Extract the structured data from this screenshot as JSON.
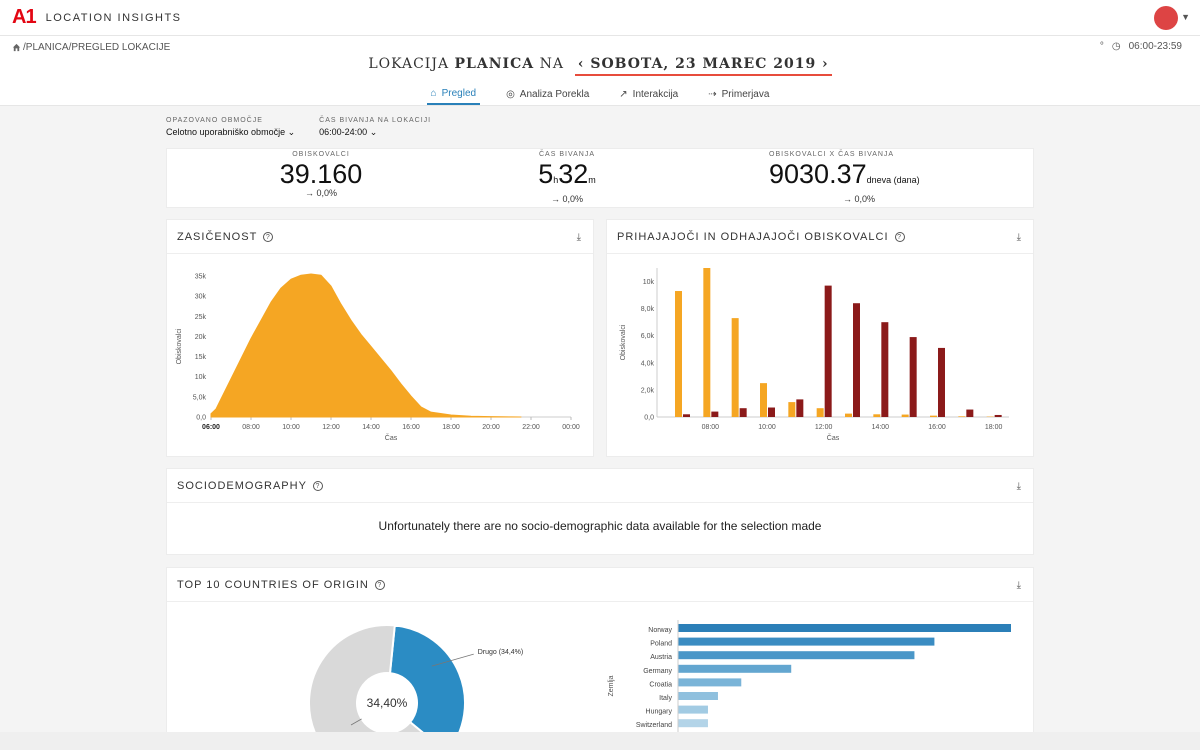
{
  "app": {
    "logo": "A1",
    "name": "LOCATION INSIGHTS"
  },
  "breadcrumb": "/PLANICA/PREGLED LOKACIJE",
  "time_range": "06:00-23:59",
  "title": {
    "prefix": "LOKACIJA",
    "location": "PLANICA",
    "mid": "NA",
    "date": "SOBOTA, 23 MAREC 2019"
  },
  "tabs": [
    {
      "label": "Pregled",
      "icon": "home-icon"
    },
    {
      "label": "Analiza Porekla",
      "icon": "globe-icon"
    },
    {
      "label": "Interakcija",
      "icon": "interaction-icon"
    },
    {
      "label": "Primerjava",
      "icon": "compare-icon"
    }
  ],
  "filters": {
    "area": {
      "label": "OPAZOVANO OBMOČJE",
      "value": "Celotno uporabniško območje"
    },
    "dwell": {
      "label": "ČAS BIVANJA NA LOKACIJI",
      "value": "06:00-24:00"
    }
  },
  "kpis": [
    {
      "label": "OBISKOVALCI",
      "value": "39.160",
      "unit": "",
      "delta": "→ 0,0%"
    },
    {
      "label": "ČAS BIVANJA",
      "value_h": "5",
      "unit_h": "h",
      "value_m": "32",
      "unit_m": "m",
      "delta": "→ 0,0%"
    },
    {
      "label": "OBISKOVALCI X ČAS BIVANJA",
      "value": "9030.37",
      "unit": "dneva (dana)",
      "delta": "→ 0,0%"
    }
  ],
  "cards": {
    "saturation": "ZASIČENOST",
    "arrivals": "PRIHAJAJOČI IN ODHAJAJOČI OBISKOVALCI",
    "socio": "SOCIODEMOGRAPHY",
    "socio_message": "Unfortunately there are no socio-demographic data available for the selection made",
    "countries": "TOP 10 COUNTRIES OF ORIGIN"
  },
  "chart_data": [
    {
      "type": "area",
      "ylabel": "Obiskovalci",
      "xlabel": "Čas",
      "x_ticks": [
        "06:00",
        "08:00",
        "10:00",
        "12:00",
        "14:00",
        "16:00",
        "18:00",
        "20:00",
        "22:00",
        "00:00"
      ],
      "y_ticks": [
        "0,0",
        "5,0k",
        "10k",
        "15k",
        "20k",
        "25k",
        "30k",
        "35k"
      ],
      "ylim": [
        0,
        35000
      ],
      "x_hours": [
        6.0,
        6.25,
        6.5,
        7.0,
        7.5,
        8.0,
        8.5,
        9.0,
        9.5,
        10.0,
        10.5,
        11.0,
        11.5,
        12.0,
        12.5,
        13.0,
        13.5,
        14.0,
        14.5,
        15.0,
        15.5,
        16.0,
        16.5,
        17.0,
        18.0,
        19.0,
        20.0,
        20.5,
        21.0,
        21.5
      ],
      "values": [
        800,
        2000,
        4500,
        9500,
        14500,
        19500,
        24000,
        28500,
        32000,
        34200,
        35200,
        35500,
        35200,
        32500,
        28000,
        24000,
        20500,
        17500,
        14500,
        11500,
        8200,
        5200,
        2500,
        1200,
        500,
        200,
        100,
        50,
        20,
        0
      ],
      "color": "#f5a623"
    },
    {
      "type": "bar",
      "ylabel": "Obiskovalci",
      "xlabel": "Čas",
      "x_ticks": [
        "08:00",
        "10:00",
        "12:00",
        "14:00",
        "16:00",
        "18:00"
      ],
      "y_ticks": [
        "0,0",
        "2,0k",
        "4,0k",
        "6,0k",
        "8,0k",
        "10k"
      ],
      "ylim": [
        0,
        11000
      ],
      "categories": [
        "07:00",
        "08:00",
        "09:00",
        "10:00",
        "11:00",
        "12:00",
        "13:00",
        "14:00",
        "15:00",
        "16:00",
        "17:00",
        "18:00"
      ],
      "series": [
        {
          "name": "",
          "color": "#f5a623",
          "values": [
            9300,
            11000,
            7300,
            2500,
            1100,
            650,
            250,
            200,
            180,
            100,
            50,
            30
          ]
        },
        {
          "name": "",
          "color": "#8b1a1a",
          "values": [
            200,
            400,
            650,
            700,
            1300,
            9700,
            8400,
            7000,
            5900,
            5100,
            550,
            150
          ]
        }
      ]
    },
    {
      "type": "pie",
      "center_label": "34,40%",
      "slices": [
        {
          "label": "Drugo (34,4%)",
          "value": 34.4,
          "color": "#2b8cc4"
        },
        {
          "label": "",
          "value": 65.6,
          "color": "#d9d9d9"
        }
      ]
    },
    {
      "type": "bar",
      "orientation": "horizontal",
      "ylabel": "Zemlja",
      "categories": [
        "Norway",
        "Poland",
        "Austria",
        "Germany",
        "Croatia",
        "Italy",
        "Hungary",
        "Switzerland"
      ],
      "values": [
        100,
        77,
        71,
        34,
        19,
        12,
        9,
        9
      ],
      "colors": [
        "#2b7fb8",
        "#3a8cc2",
        "#4a97c8",
        "#63a6d0",
        "#7ab4d8",
        "#8fc0de",
        "#a2cbe3",
        "#b3d4e8"
      ]
    }
  ]
}
